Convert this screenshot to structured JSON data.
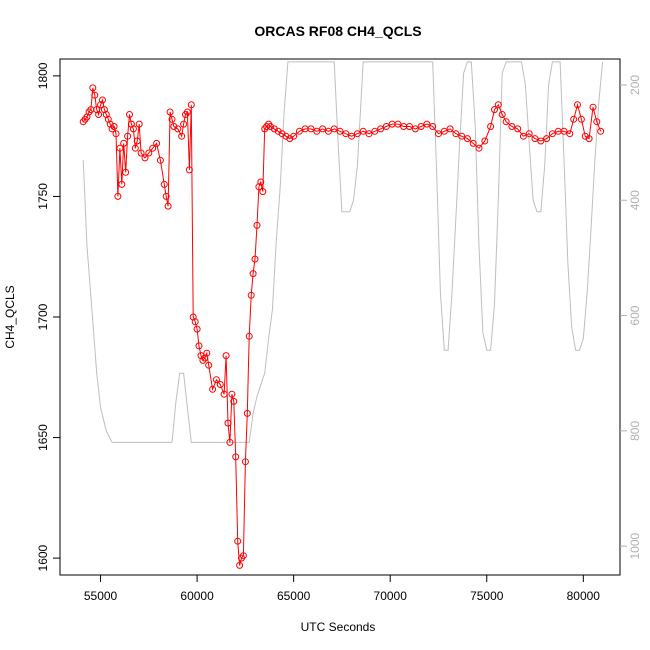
{
  "chart_data": {
    "type": "line",
    "title": "ORCAS RF08 CH4_QCLS",
    "xlabel": "UTC Seconds",
    "ylabel": "CH4_QCLS",
    "y2label": "",
    "xlim": [
      52900,
      81900
    ],
    "ylim": [
      1593,
      1807
    ],
    "y2lim": [
      1050,
      155
    ],
    "y2_reversed": true,
    "grid": false,
    "legend": "none",
    "x_ticks": [
      55000,
      60000,
      65000,
      70000,
      75000,
      80000
    ],
    "x_tick_labels": [
      "55000",
      "60000",
      "65000",
      "70000",
      "75000",
      "80000"
    ],
    "y_ticks": [
      1600,
      1650,
      1700,
      1750,
      1800
    ],
    "y_tick_labels": [
      "1600",
      "1650",
      "1700",
      "1750",
      "1800"
    ],
    "y2_ticks": [
      200,
      400,
      600,
      800,
      1000
    ],
    "y2_tick_labels": [
      "200",
      "400",
      "600",
      "800",
      "1000"
    ],
    "colors": {
      "ch4": "#ff0000",
      "pressure": "#bebebe",
      "axis": "#000000",
      "y2axis": "#b0b0b0"
    },
    "series": [
      {
        "role": "ch4",
        "style": "line+open-circles",
        "x": [
          54100,
          54200,
          54300,
          54400,
          54500,
          54600,
          54700,
          54800,
          54900,
          55000,
          55100,
          55200,
          55300,
          55400,
          55500,
          55600,
          55700,
          55800,
          55900,
          56000,
          56100,
          56200,
          56300,
          56400,
          56500,
          56600,
          56700,
          56800,
          56900,
          57000,
          57100,
          57300,
          57500,
          57700,
          57900,
          58100,
          58300,
          58400,
          58500,
          58600,
          58700,
          58800,
          59000,
          59200,
          59300,
          59400,
          59500,
          59600,
          59700,
          59800,
          59900,
          60000,
          60100,
          60200,
          60300,
          60400,
          60500,
          60600,
          60800,
          61000,
          61200,
          61400,
          61500,
          61600,
          61700,
          61800,
          61900,
          62000,
          62100,
          62200,
          62300,
          62400,
          62500,
          62600,
          62700,
          62800,
          62900,
          63000,
          63100,
          63200,
          63300,
          63400,
          63500,
          63600,
          63700,
          63800,
          64000,
          64200,
          64400,
          64600,
          64800,
          65000,
          65300,
          65600,
          65900,
          66200,
          66500,
          66800,
          67100,
          67400,
          67700,
          68000,
          68300,
          68600,
          68900,
          69200,
          69500,
          69800,
          70100,
          70400,
          70700,
          71000,
          71300,
          71600,
          71900,
          72200,
          72500,
          72800,
          73100,
          73400,
          73700,
          74000,
          74300,
          74600,
          74900,
          75200,
          75400,
          75600,
          75800,
          76000,
          76300,
          76600,
          76900,
          77200,
          77500,
          77800,
          78100,
          78400,
          78700,
          79000,
          79300,
          79500,
          79700,
          79900,
          80100,
          80300,
          80500,
          80700,
          80900
        ],
        "y": [
          1781,
          1782,
          1783,
          1785,
          1786,
          1795,
          1792,
          1786,
          1784,
          1788,
          1790,
          1786,
          1784,
          1782,
          1780,
          1778,
          1779,
          1776,
          1750,
          1770,
          1755,
          1772,
          1760,
          1775,
          1784,
          1780,
          1778,
          1770,
          1773,
          1780,
          1768,
          1766,
          1768,
          1770,
          1772,
          1765,
          1755,
          1750,
          1746,
          1785,
          1782,
          1779,
          1778,
          1775,
          1780,
          1784,
          1785,
          1761,
          1788,
          1700,
          1698,
          1695,
          1688,
          1684,
          1682,
          1683,
          1685,
          1680,
          1670,
          1674,
          1672,
          1668,
          1684,
          1656,
          1648,
          1668,
          1665,
          1642,
          1607,
          1597,
          1600,
          1601,
          1640,
          1660,
          1692,
          1709,
          1718,
          1724,
          1738,
          1754,
          1756,
          1752,
          1778,
          1779,
          1780,
          1779,
          1778,
          1777,
          1776,
          1775,
          1774,
          1775,
          1777,
          1778,
          1778,
          1777,
          1778,
          1777,
          1778,
          1777,
          1776,
          1775,
          1776,
          1777,
          1776,
          1777,
          1778,
          1779,
          1780,
          1780,
          1779,
          1779,
          1778,
          1779,
          1780,
          1779,
          1776,
          1777,
          1778,
          1776,
          1775,
          1774,
          1772,
          1770,
          1773,
          1779,
          1786,
          1788,
          1784,
          1781,
          1779,
          1778,
          1775,
          1776,
          1774,
          1773,
          1774,
          1776,
          1777,
          1777,
          1776,
          1782,
          1788,
          1782,
          1775,
          1774,
          1787,
          1781,
          1777
        ]
      },
      {
        "role": "pressure",
        "style": "line",
        "x": [
          54100,
          54300,
          54600,
          54800,
          55000,
          55300,
          55600,
          56000,
          57000,
          58000,
          58400,
          58700,
          58900,
          59100,
          59300,
          59500,
          59700,
          60000,
          61000,
          62000,
          62400,
          62700,
          62900,
          63100,
          63300,
          63500,
          63700,
          63900,
          64100,
          64300,
          64500,
          64700,
          64900,
          65100,
          65300,
          65500,
          65700,
          65900,
          66100,
          66300,
          66500,
          66700,
          66900,
          67100,
          67300,
          67500,
          67700,
          67900,
          68100,
          68300,
          68600,
          69000,
          69400,
          69800,
          70200,
          70400,
          70600,
          70800,
          71000,
          71200,
          71400,
          71600,
          71800,
          72000,
          72200,
          72400,
          72600,
          72800,
          73000,
          73200,
          73400,
          73600,
          73800,
          74000,
          74200,
          74400,
          74600,
          74800,
          75000,
          75200,
          75400,
          75600,
          75800,
          76000,
          76200,
          76400,
          76600,
          76800,
          77000,
          77200,
          77400,
          77600,
          77800,
          78000,
          78200,
          78400,
          78600,
          78800,
          79000,
          79200,
          79400,
          79600,
          79800,
          80000,
          80200,
          80400,
          80600,
          80800,
          81000
        ],
        "y": [
          330,
          480,
          610,
          700,
          760,
          800,
          820,
          820,
          820,
          820,
          820,
          820,
          750,
          700,
          700,
          760,
          820,
          820,
          820,
          820,
          820,
          820,
          770,
          740,
          720,
          700,
          640,
          590,
          470,
          380,
          250,
          160,
          160,
          160,
          160,
          160,
          160,
          160,
          160,
          160,
          160,
          160,
          160,
          160,
          300,
          420,
          420,
          420,
          400,
          340,
          160,
          160,
          160,
          160,
          160,
          160,
          160,
          160,
          160,
          160,
          160,
          160,
          160,
          160,
          160,
          350,
          560,
          660,
          660,
          560,
          430,
          300,
          180,
          160,
          160,
          270,
          480,
          630,
          660,
          660,
          580,
          400,
          180,
          160,
          160,
          160,
          160,
          160,
          200,
          300,
          400,
          420,
          420,
          340,
          200,
          160,
          160,
          160,
          330,
          510,
          620,
          660,
          660,
          640,
          560,
          450,
          330,
          230,
          160
        ]
      }
    ]
  }
}
